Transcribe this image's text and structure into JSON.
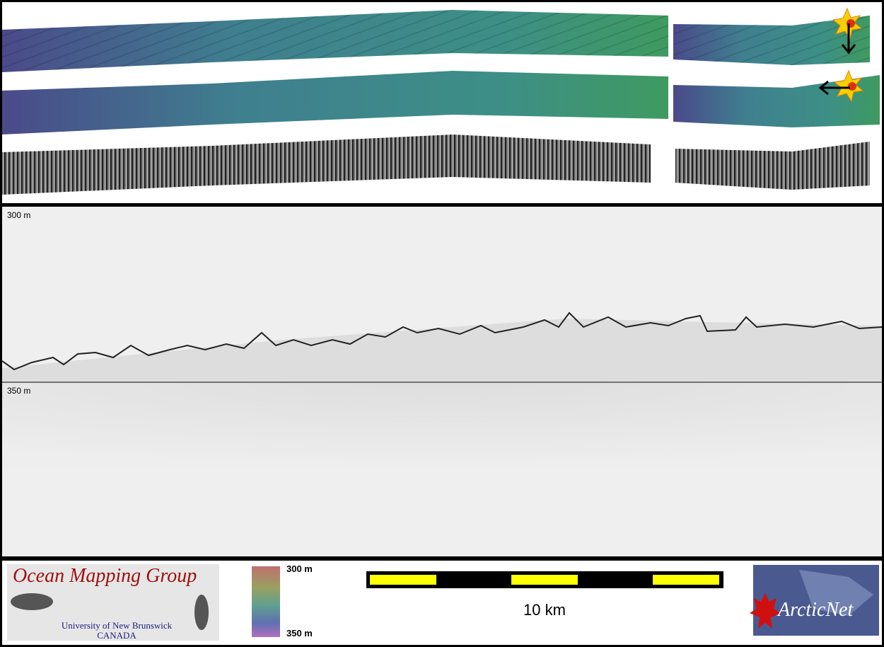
{
  "profile_panel": {
    "depth_labels": [
      "300 m",
      "350 m"
    ]
  },
  "footer": {
    "logo": {
      "title": "Ocean Mapping Group",
      "institution": "University of New Brunswick",
      "country": "CANADA"
    },
    "colorbar": {
      "labels": [
        "300 m",
        "350 m"
      ]
    },
    "scale_bar": {
      "label": "10 km"
    },
    "partner_logo": {
      "text": "ArcticNet"
    }
  }
}
